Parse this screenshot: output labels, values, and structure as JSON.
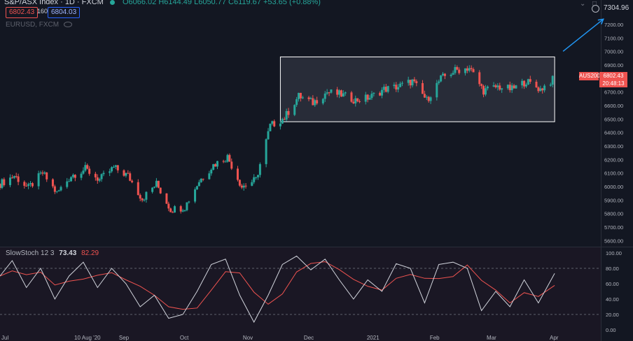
{
  "header": {
    "symbol": "S&P/ASX Index · 1D · FXCM",
    "ohlc": "O6066.02 H6144.49 L6050.77 C6119.67 +53.65 (+0.88%)",
    "sell_price": "6802.43",
    "spread": "160",
    "buy_price": "6804.03",
    "secondary_symbol": "EURUSD, FXCM"
  },
  "top_right": {
    "price": "7304.96",
    "up_icon": "chevron-up-icon",
    "clock_icon": "clock-icon"
  },
  "last_price": {
    "ticker": "AUS200",
    "price": "6802.43",
    "countdown": "20:48:13"
  },
  "indicator": {
    "name": "SlowStoch",
    "params": "12 3",
    "k_value": "73.43",
    "d_value": "82.29"
  },
  "price_axis": [
    "7200.00",
    "7100.00",
    "7000.00",
    "6900.00",
    "6800.00",
    "6700.00",
    "6600.00",
    "6500.00",
    "6400.00",
    "6300.00",
    "6200.00",
    "6100.00",
    "6000.00",
    "5900.00",
    "5800.00",
    "5700.00",
    "5600.00"
  ],
  "stoch_axis": [
    "100.00",
    "80.00",
    "60.00",
    "40.00",
    "20.00",
    "0.00"
  ],
  "time_axis": [
    "Jul",
    "10 Aug '20",
    "Sep",
    "Oct",
    "Nov",
    "Dec",
    "2021",
    "Feb",
    "Mar",
    "Apr"
  ],
  "colors": {
    "background": "#131722",
    "up": "#26a69a",
    "down": "#ef5350",
    "k_line": "#d1d4dc",
    "d_line": "#ef5350",
    "arrow": "#2196f3"
  },
  "chart_data": [
    {
      "type": "candlestick",
      "title": "S&P/ASX Index · 1D · FXCM",
      "ylim": [
        5560,
        7340
      ],
      "x_range": [
        "2020-07-01",
        "2021-04-01"
      ],
      "close_path": [
        [
          "2020-07-01",
          6020
        ],
        [
          "2020-07-08",
          6080
        ],
        [
          "2020-07-15",
          5990
        ],
        [
          "2020-07-22",
          6100
        ],
        [
          "2020-07-29",
          5950
        ],
        [
          "2020-08-05",
          6080
        ],
        [
          "2020-08-12",
          6130
        ],
        [
          "2020-08-19",
          6050
        ],
        [
          "2020-08-26",
          6140
        ],
        [
          "2020-09-02",
          6080
        ],
        [
          "2020-09-09",
          5910
        ],
        [
          "2020-09-16",
          6020
        ],
        [
          "2020-09-23",
          5830
        ],
        [
          "2020-09-30",
          5850
        ],
        [
          "2020-10-07",
          6040
        ],
        [
          "2020-10-14",
          6160
        ],
        [
          "2020-10-21",
          6220
        ],
        [
          "2020-10-28",
          6000
        ],
        [
          "2020-11-04",
          6050
        ],
        [
          "2020-11-11",
          6450
        ],
        [
          "2020-11-18",
          6510
        ],
        [
          "2020-11-25",
          6670
        ],
        [
          "2020-12-02",
          6620
        ],
        [
          "2020-12-09",
          6700
        ],
        [
          "2020-12-16",
          6680
        ],
        [
          "2020-12-23",
          6640
        ],
        [
          "2020-12-30",
          6660
        ],
        [
          "2021-01-06",
          6720
        ],
        [
          "2021-01-13",
          6740
        ],
        [
          "2021-01-20",
          6780
        ],
        [
          "2021-01-27",
          6640
        ],
        [
          "2021-02-03",
          6800
        ],
        [
          "2021-02-10",
          6860
        ],
        [
          "2021-02-17",
          6880
        ],
        [
          "2021-02-24",
          6710
        ],
        [
          "2021-03-03",
          6740
        ],
        [
          "2021-03-10",
          6720
        ],
        [
          "2021-03-17",
          6780
        ],
        [
          "2021-03-24",
          6720
        ],
        [
          "2021-03-31",
          6802.43
        ]
      ],
      "consolidation_box": {
        "from": "2020-11-16",
        "to": "2021-03-31",
        "low": 6480,
        "high": 6960
      },
      "arrow_target": 7240
    },
    {
      "type": "line",
      "title": "SlowStoch 12 3",
      "ylim": [
        0,
        100
      ],
      "overbought": 80,
      "oversold": 20,
      "k_path": [
        [
          "2020-07-01",
          70
        ],
        [
          "2020-07-07",
          90
        ],
        [
          "2020-07-14",
          55
        ],
        [
          "2020-07-21",
          80
        ],
        [
          "2020-07-28",
          40
        ],
        [
          "2020-08-04",
          70
        ],
        [
          "2020-08-11",
          88
        ],
        [
          "2020-08-18",
          55
        ],
        [
          "2020-08-25",
          80
        ],
        [
          "2020-09-01",
          60
        ],
        [
          "2020-09-08",
          30
        ],
        [
          "2020-09-15",
          45
        ],
        [
          "2020-09-22",
          15
        ],
        [
          "2020-09-29",
          20
        ],
        [
          "2020-10-06",
          50
        ],
        [
          "2020-10-13",
          85
        ],
        [
          "2020-10-20",
          92
        ],
        [
          "2020-10-27",
          45
        ],
        [
          "2020-11-03",
          10
        ],
        [
          "2020-11-10",
          45
        ],
        [
          "2020-11-17",
          85
        ],
        [
          "2020-11-24",
          96
        ],
        [
          "2020-12-01",
          78
        ],
        [
          "2020-12-08",
          92
        ],
        [
          "2020-12-15",
          65
        ],
        [
          "2020-12-22",
          40
        ],
        [
          "2020-12-29",
          65
        ],
        [
          "2021-01-05",
          50
        ],
        [
          "2021-01-12",
          86
        ],
        [
          "2021-01-19",
          80
        ],
        [
          "2021-01-26",
          35
        ],
        [
          "2021-02-02",
          85
        ],
        [
          "2021-02-09",
          88
        ],
        [
          "2021-02-16",
          80
        ],
        [
          "2021-02-23",
          25
        ],
        [
          "2021-03-02",
          50
        ],
        [
          "2021-03-09",
          30
        ],
        [
          "2021-03-16",
          65
        ],
        [
          "2021-03-23",
          35
        ],
        [
          "2021-03-31",
          73.43
        ]
      ]
    }
  ]
}
